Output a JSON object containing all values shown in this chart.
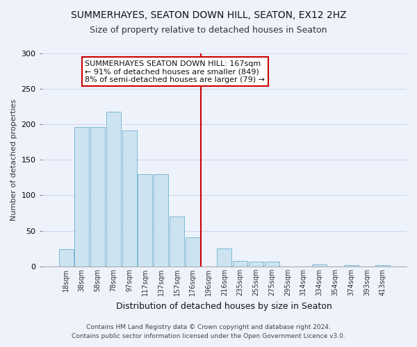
{
  "title": "SUMMERHAYES, SEATON DOWN HILL, SEATON, EX12 2HZ",
  "subtitle": "Size of property relative to detached houses in Seaton",
  "xlabel": "Distribution of detached houses by size in Seaton",
  "ylabel": "Number of detached properties",
  "bar_labels": [
    "18sqm",
    "38sqm",
    "58sqm",
    "78sqm",
    "97sqm",
    "117sqm",
    "137sqm",
    "157sqm",
    "176sqm",
    "196sqm",
    "216sqm",
    "235sqm",
    "255sqm",
    "275sqm",
    "295sqm",
    "314sqm",
    "334sqm",
    "354sqm",
    "374sqm",
    "393sqm",
    "413sqm"
  ],
  "bar_values": [
    24,
    196,
    196,
    218,
    191,
    130,
    130,
    70,
    41,
    0,
    25,
    8,
    7,
    7,
    0,
    0,
    3,
    0,
    2,
    0,
    2
  ],
  "bar_color": "#cde4f0",
  "bar_edge_color": "#7ab8d4",
  "vline_color": "#cc0000",
  "ylim": [
    0,
    300
  ],
  "yticks": [
    0,
    50,
    100,
    150,
    200,
    250,
    300
  ],
  "annotation_text": "SUMMERHAYES SEATON DOWN HILL: 167sqm\n← 91% of detached houses are smaller (849)\n8% of semi-detached houses are larger (79) →",
  "annotation_box_color": "#ffffff",
  "annotation_box_edge": "#cc0000",
  "footer_line1": "Contains HM Land Registry data © Crown copyright and database right 2024.",
  "footer_line2": "Contains public sector information licensed under the Open Government Licence v3.0.",
  "background_color": "#eef2fb",
  "grid_color": "#d0d8ee",
  "title_fontsize": 10,
  "subtitle_fontsize": 9
}
